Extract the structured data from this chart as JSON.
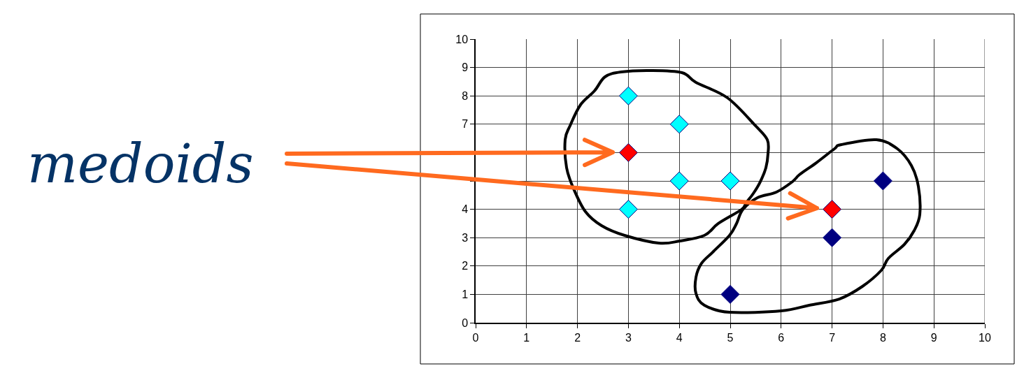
{
  "chart_data": {
    "type": "scatter",
    "series": [
      {
        "color": "#00ffff",
        "x": [
          3,
          4,
          4,
          5,
          3
        ],
        "values": [
          8,
          7,
          5,
          5,
          4
        ]
      },
      {
        "color": "#ff0000",
        "x": [
          3,
          7
        ],
        "values": [
          6,
          4
        ]
      },
      {
        "color": "#000080",
        "x": [
          8,
          7,
          5
        ],
        "values": [
          5,
          3,
          1
        ]
      }
    ],
    "xlim": [
      0,
      10
    ],
    "ylim": [
      0,
      10
    ],
    "xticks": [
      0,
      1,
      2,
      3,
      4,
      5,
      6,
      7,
      8,
      9,
      10
    ],
    "yticks": [
      0,
      1,
      2,
      3,
      4,
      {
        "value": 5,
        "label": null
      },
      {
        "value": 6,
        "label": null
      },
      7,
      8,
      9,
      10
    ],
    "grid": true,
    "marker": "diamond",
    "annotations": [
      "medoids"
    ]
  }
}
